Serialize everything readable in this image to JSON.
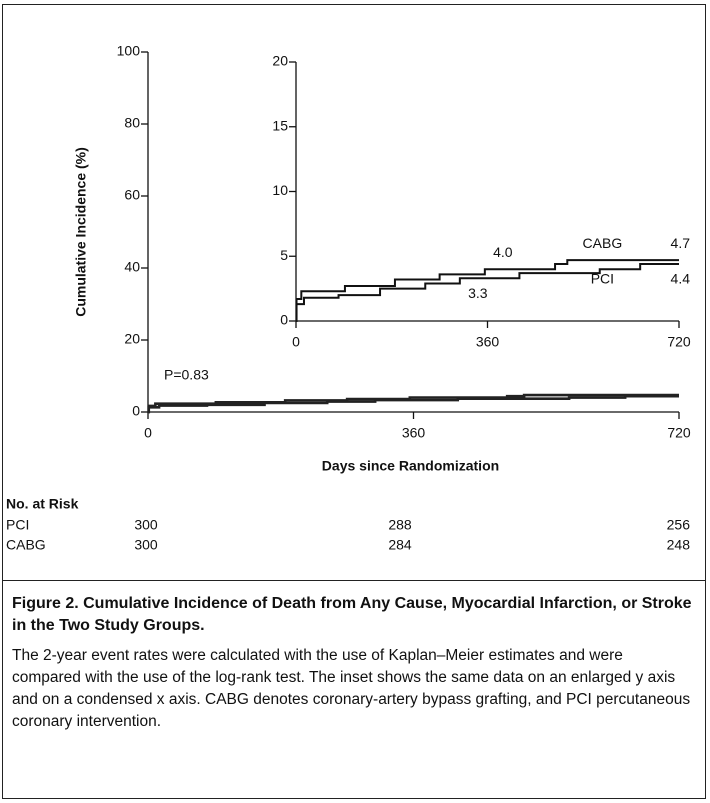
{
  "chart_data": [
    {
      "type": "step",
      "y_label": "Cumulative Incidence (%)",
      "x_label": "Days since Randomization",
      "annotation": "P=0.83",
      "xlim": [
        0,
        720
      ],
      "xticks": [
        0,
        360,
        720
      ],
      "ylim": [
        0,
        100
      ],
      "yticks": [
        0,
        20,
        40,
        60,
        80,
        100
      ],
      "series": [
        {
          "name": "CABG",
          "color": "#222222",
          "x": [
            0,
            1,
            10,
            92,
            186,
            270,
            355,
            487,
            510,
            720
          ],
          "values": [
            0,
            1.7,
            2.3,
            2.7,
            3.2,
            3.6,
            4.0,
            4.4,
            4.7,
            4.7
          ]
        },
        {
          "name": "PCI",
          "color": "#222222",
          "x": [
            0,
            1,
            15,
            80,
            158,
            243,
            308,
            420,
            571,
            647,
            720
          ],
          "values": [
            0,
            1.3,
            1.8,
            2.0,
            2.5,
            2.9,
            3.3,
            3.7,
            4.0,
            4.4,
            4.4
          ]
        }
      ]
    },
    {
      "type": "step",
      "xlim": [
        0,
        720
      ],
      "xticks": [
        0,
        360,
        720
      ],
      "ylim": [
        0,
        20
      ],
      "yticks": [
        0,
        5,
        10,
        15,
        20
      ],
      "series": [
        {
          "name": "CABG",
          "color": "#111111",
          "x": [
            0,
            1,
            10,
            92,
            186,
            270,
            355,
            487,
            510,
            720
          ],
          "values": [
            0,
            1.7,
            2.3,
            2.7,
            3.2,
            3.6,
            4.0,
            4.4,
            4.7,
            4.7
          ],
          "value_labels": [
            null,
            null,
            null,
            null,
            null,
            null,
            "4.0",
            null,
            null,
            "4.7"
          ]
        },
        {
          "name": "PCI",
          "color": "#111111",
          "x": [
            0,
            1,
            15,
            80,
            158,
            243,
            308,
            420,
            571,
            647,
            720
          ],
          "values": [
            0,
            1.3,
            1.8,
            2.0,
            2.5,
            2.9,
            3.3,
            3.7,
            4.0,
            4.4,
            4.4
          ],
          "value_labels": [
            null,
            null,
            null,
            null,
            null,
            null,
            "3.3",
            null,
            null,
            null,
            "4.4"
          ]
        }
      ]
    }
  ],
  "risk_table": {
    "title": "No. at Risk",
    "rows": [
      [
        "PCI",
        300,
        288,
        256
      ],
      [
        "CABG",
        300,
        284,
        248
      ]
    ]
  },
  "caption": {
    "title": "Figure 2. Cumulative Incidence of Death from Any Cause, Myocardial Infarction, or Stroke in the Two Study Groups.",
    "body": "The 2-year event rates were calculated with the use of Kaplan–Meier estimates and were compared with the use of the log-rank test. The inset shows the same data on an enlarged y axis and on a condensed x axis. CABG denotes coronary-artery bypass grafting, and PCI percutaneous coronary intervention."
  }
}
